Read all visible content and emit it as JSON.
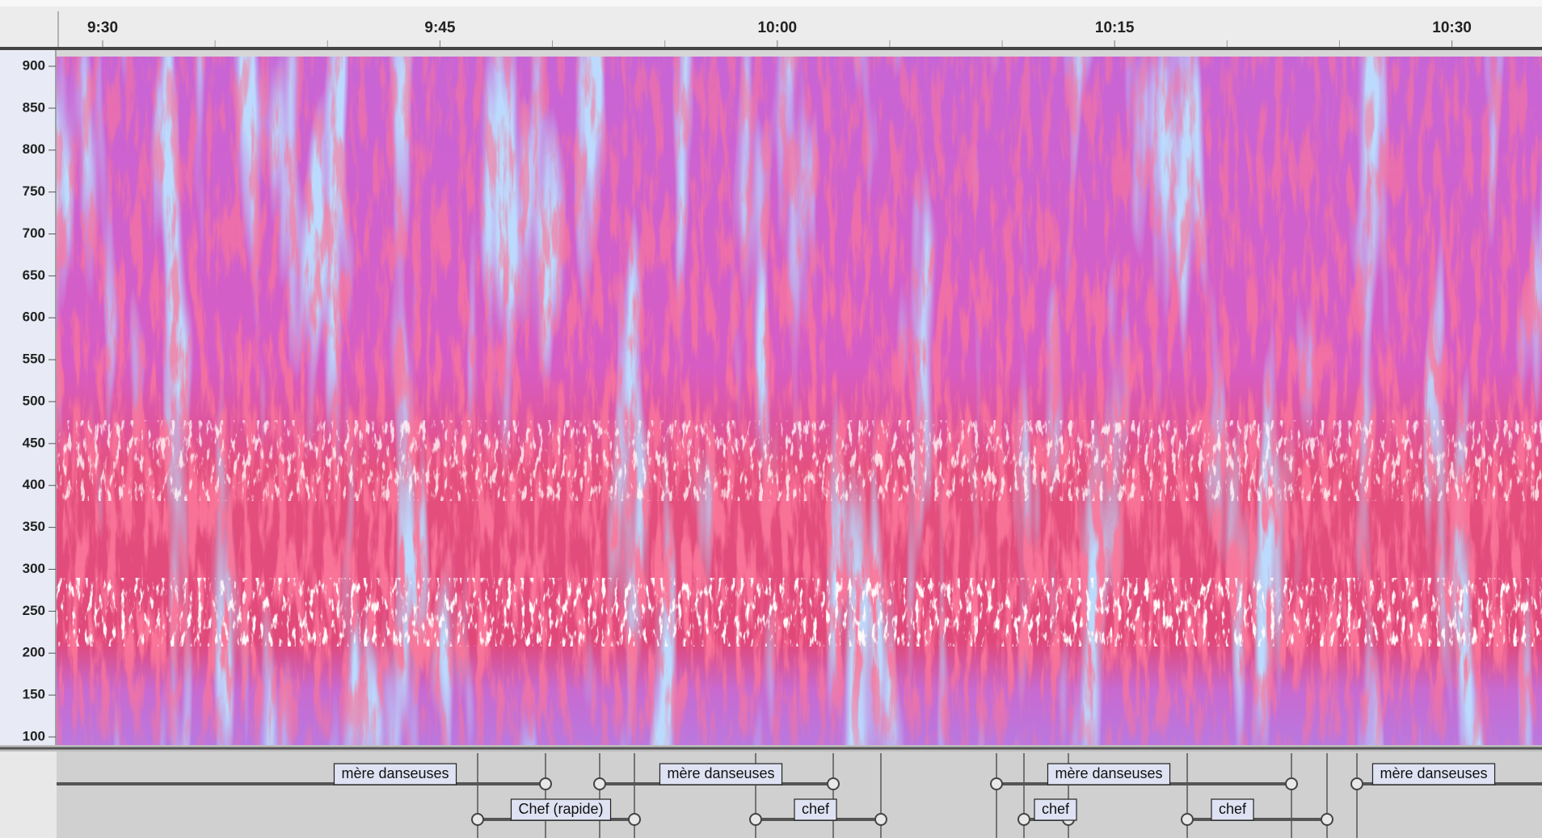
{
  "ruler": {
    "ticks": [
      "9:30",
      "9:45",
      "10:00",
      "10:15",
      "10:30"
    ]
  },
  "frequency_axis": {
    "ticks": [
      900,
      850,
      800,
      750,
      700,
      650,
      600,
      550,
      500,
      450,
      400,
      350,
      300,
      250,
      200,
      150,
      100
    ]
  },
  "label_track": {
    "labels": [
      "mère danseuses",
      "mère danseuses",
      "mère danseuses",
      "mère danseuses",
      "Chef (rapide)",
      "chef",
      "chef",
      "chef"
    ]
  }
}
